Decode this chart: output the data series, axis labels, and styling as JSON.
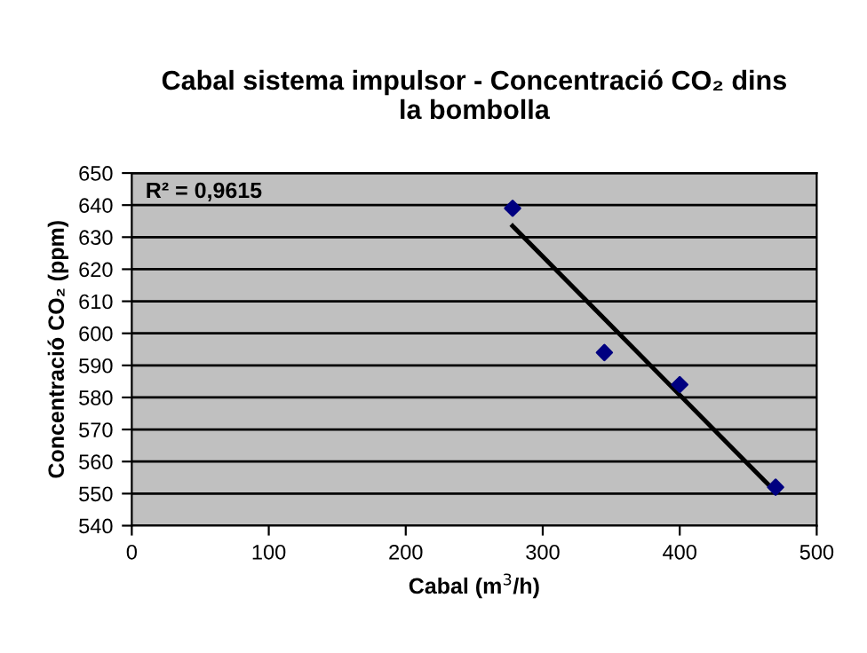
{
  "chart_data": {
    "type": "scatter",
    "title": "Cabal sistema impulsor - Concentració CO₂ dins\nla bombolla",
    "xlabel": "Cabal (m$^{3}$/h)",
    "ylabel": "Concentració CO₂ (ppm)",
    "series": [
      {
        "color": "#000080",
        "marker": "diamond",
        "x": [
          278,
          345,
          400,
          470
        ],
        "values": [
          639,
          594,
          584,
          552
        ]
      },
      {
        "type": "line",
        "color": "#000000",
        "marker": "none",
        "line_style": "solid",
        "x": [
          278,
          470
        ],
        "values": [
          633.5,
          550.5
        ]
      }
    ],
    "annotations": [
      "R² = 0,9615"
    ],
    "xlim": [
      0,
      500
    ],
    "xticks": [
      0,
      100,
      200,
      300,
      400,
      500
    ],
    "ylim": [
      540,
      650
    ],
    "yticks": [
      540,
      550,
      560,
      570,
      580,
      590,
      600,
      610,
      620,
      630,
      640,
      650
    ],
    "grid": "y",
    "legend": false
  }
}
